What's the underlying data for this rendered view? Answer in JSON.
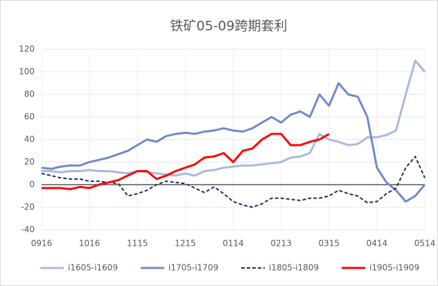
{
  "chart_data": {
    "type": "line",
    "title": "铁矿05-09跨期套利",
    "x": [
      0,
      6,
      12,
      18,
      24,
      30,
      36,
      42,
      48,
      54,
      60,
      66,
      72,
      78,
      84,
      90,
      96,
      102,
      108,
      114,
      120,
      126,
      132,
      138,
      144,
      150,
      156,
      162,
      168,
      174,
      180,
      186,
      192,
      198,
      204,
      210,
      216,
      222,
      228,
      234,
      240
    ],
    "xlim": [
      0,
      240
    ],
    "xticks": [
      {
        "value": 0,
        "label": "0916"
      },
      {
        "value": 30,
        "label": "1016"
      },
      {
        "value": 60,
        "label": "1115"
      },
      {
        "value": 90,
        "label": "1215"
      },
      {
        "value": 120,
        "label": "0114"
      },
      {
        "value": 150,
        "label": "0213"
      },
      {
        "value": 180,
        "label": "0315"
      },
      {
        "value": 210,
        "label": "0414"
      },
      {
        "value": 240,
        "label": "0514"
      }
    ],
    "ylim": [
      -40,
      120
    ],
    "yticks": [
      -40,
      -20,
      0,
      20,
      40,
      60,
      80,
      100,
      120
    ],
    "grid": true,
    "legend": "bottom",
    "series": [
      {
        "name": "i1605-i1609",
        "color": "#a9b9dc",
        "line_style": "solid",
        "values": [
          12,
          12,
          11,
          12,
          12,
          13,
          12,
          12,
          11,
          10,
          12,
          11,
          10,
          9,
          8,
          10,
          8,
          12,
          13,
          15,
          16,
          17,
          17,
          18,
          19,
          20,
          24,
          25,
          28,
          45,
          40,
          38,
          35,
          36,
          42,
          42,
          44,
          48,
          80,
          110,
          100
        ]
      },
      {
        "name": "i1705-i1709",
        "color": "#7189c8",
        "line_style": "solid",
        "values": [
          15,
          14,
          16,
          17,
          17,
          20,
          22,
          24,
          27,
          30,
          35,
          40,
          38,
          43,
          45,
          46,
          45,
          47,
          48,
          50,
          48,
          47,
          50,
          55,
          60,
          55,
          62,
          65,
          60,
          80,
          70,
          90,
          80,
          78,
          60,
          15,
          2,
          -5,
          -15,
          -10,
          0
        ]
      },
      {
        "name": "i1805-i1809",
        "color": "#1f2d5c",
        "line_style": "dashed",
        "values": [
          10,
          8,
          6,
          5,
          5,
          3,
          3,
          2,
          1,
          -10,
          -8,
          -5,
          0,
          3,
          2,
          1,
          -3,
          -7,
          -2,
          -8,
          -15,
          -18,
          -20,
          -17,
          -12,
          -12,
          -13,
          -14,
          -12,
          -12,
          -10,
          -5,
          -8,
          -10,
          -16,
          -15,
          -8,
          -3,
          15,
          25,
          6
        ]
      },
      {
        "name": "i1905-i1909",
        "color": "#ff0000",
        "line_style": "solid",
        "values": [
          -3,
          -3,
          -3,
          -4,
          -2,
          -3,
          0,
          2,
          4,
          8,
          12,
          12,
          5,
          8,
          12,
          15,
          18,
          24,
          25,
          28,
          20,
          30,
          32,
          40,
          45,
          45,
          35,
          35,
          38,
          40,
          45,
          null,
          null,
          null,
          null,
          null,
          null,
          null,
          null,
          null,
          null
        ]
      }
    ]
  }
}
